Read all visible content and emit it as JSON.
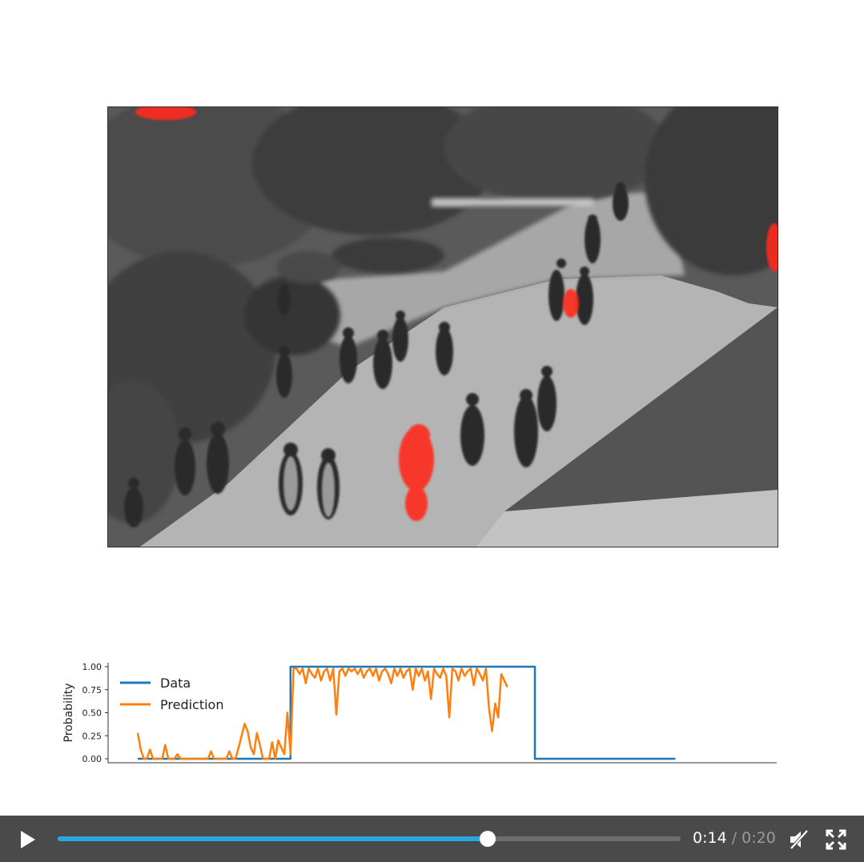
{
  "chart_data": {
    "type": "line",
    "ylabel": "Probability",
    "ylim": [
      0,
      1
    ],
    "yticks": [
      "0.00",
      "0.25",
      "0.50",
      "0.75",
      "1.00"
    ],
    "xlim": [
      0,
      200
    ],
    "legend": {
      "placement": "top-left",
      "entries": [
        "Data",
        "Prediction"
      ]
    },
    "series": [
      {
        "name": "Data",
        "color": "#1f77b4",
        "x": [
          0,
          50,
          50,
          130,
          130,
          176
        ],
        "y": [
          0,
          0,
          1,
          1,
          0,
          0
        ]
      },
      {
        "name": "Prediction",
        "color": "#ff7f0e",
        "x": [
          0,
          1,
          2,
          3,
          4,
          5,
          6,
          7,
          8,
          9,
          10,
          11,
          12,
          13,
          14,
          15,
          16,
          17,
          18,
          19,
          20,
          21,
          22,
          23,
          24,
          25,
          26,
          27,
          28,
          29,
          30,
          31,
          32,
          33,
          34,
          35,
          36,
          37,
          38,
          39,
          40,
          41,
          42,
          43,
          44,
          45,
          46,
          47,
          48,
          49,
          50,
          51,
          52,
          53,
          54,
          55,
          56,
          57,
          58,
          59,
          60,
          61,
          62,
          63,
          64,
          65,
          66,
          67,
          68,
          69,
          70,
          71,
          72,
          73,
          74,
          75,
          76,
          77,
          78,
          79,
          80,
          81,
          82,
          83,
          84,
          85,
          86,
          87,
          88,
          89,
          90,
          91,
          92,
          93,
          94,
          95,
          96,
          97,
          98,
          99,
          100,
          101,
          102,
          103,
          104,
          105,
          106,
          107,
          108,
          109,
          110,
          111,
          112,
          113,
          114,
          115,
          116,
          117,
          118,
          119,
          120,
          121
        ],
        "y": [
          0.28,
          0.1,
          0.0,
          0.0,
          0.1,
          0.0,
          0.0,
          0.0,
          0.0,
          0.15,
          0.0,
          0.0,
          0.0,
          0.05,
          0.0,
          0.0,
          0.0,
          0.0,
          0.0,
          0.0,
          0.0,
          0.0,
          0.0,
          0.0,
          0.08,
          0.0,
          0.0,
          0.0,
          0.0,
          0.0,
          0.08,
          0.0,
          0.0,
          0.12,
          0.25,
          0.38,
          0.3,
          0.12,
          0.05,
          0.28,
          0.15,
          0.0,
          0.0,
          0.0,
          0.18,
          0.0,
          0.2,
          0.12,
          0.05,
          0.5,
          0.05,
          0.98,
          0.98,
          0.92,
          0.98,
          0.82,
          0.98,
          0.92,
          0.88,
          0.98,
          0.85,
          0.95,
          0.98,
          0.85,
          0.98,
          0.48,
          0.95,
          0.98,
          0.9,
          0.98,
          0.95,
          0.98,
          0.92,
          0.98,
          0.88,
          0.95,
          0.98,
          0.9,
          0.98,
          0.85,
          0.95,
          0.98,
          0.92,
          0.82,
          0.98,
          0.9,
          0.98,
          0.88,
          0.95,
          0.98,
          0.75,
          0.98,
          0.9,
          0.98,
          0.85,
          0.95,
          0.65,
          0.98,
          0.92,
          0.88,
          0.98,
          0.9,
          0.45,
          0.98,
          0.95,
          0.85,
          0.98,
          0.9,
          0.95,
          0.98,
          0.8,
          0.98,
          0.92,
          0.85,
          0.98,
          0.55,
          0.3,
          0.6,
          0.45,
          0.92,
          0.85,
          0.78
        ]
      }
    ]
  },
  "video": {
    "current_time": "0:14",
    "separator": "/",
    "duration": "0:20",
    "progress_fraction": 0.69,
    "muted": true,
    "accent_color": "#2aa6de"
  },
  "icons": {
    "play": "play-icon",
    "mute": "volume-muted-icon",
    "fullscreen": "fullscreen-icon"
  }
}
